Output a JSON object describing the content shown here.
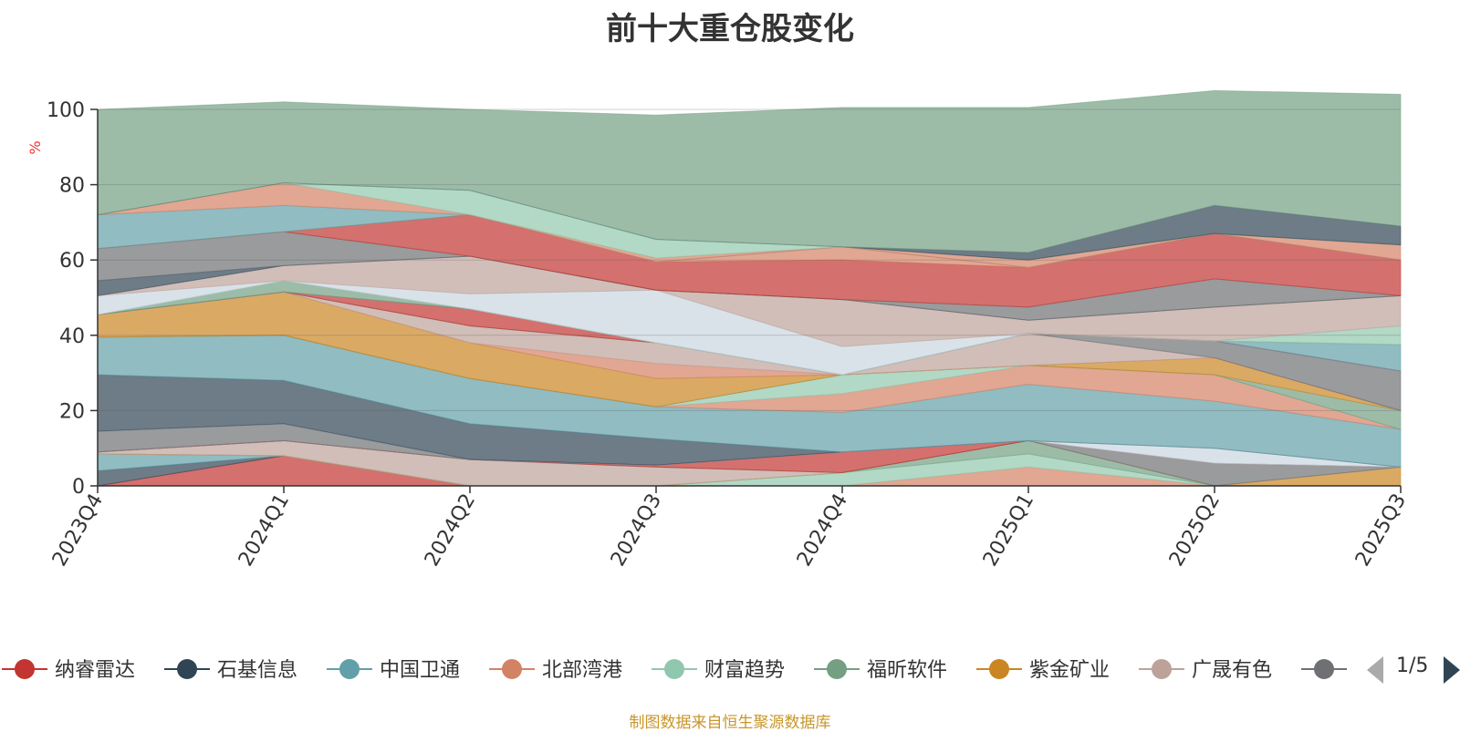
{
  "title": "前十大重仓股变化",
  "source_note": "制图数据来自恒生聚源数据库",
  "pager": {
    "text": "1/5"
  },
  "chart_data": {
    "type": "area",
    "stacked": true,
    "ylabel": "%",
    "ylim": [
      0,
      100
    ],
    "yticks": [
      "0",
      "20",
      "40",
      "60",
      "80",
      "100"
    ],
    "categories": [
      "2023Q4",
      "2024Q1",
      "2024Q2",
      "2024Q3",
      "2024Q4",
      "2025Q1",
      "2025Q2",
      "2025Q3"
    ],
    "grid": true,
    "legend_position": "bottom",
    "series": [
      {
        "name": "纳睿雷达",
        "color": "#c23531",
        "values": [
          0,
          8,
          0,
          0,
          0,
          0,
          0,
          0
        ]
      },
      {
        "name": "石基信息",
        "color": "#2f4554",
        "values": [
          4,
          0,
          0,
          0,
          0,
          0,
          0,
          0
        ]
      },
      {
        "name": "中国卫通",
        "color": "#61a0a8",
        "values": [
          4.5,
          0,
          0,
          0,
          0,
          0,
          0,
          0
        ]
      },
      {
        "name": "北部湾港",
        "color": "#d48265",
        "values": [
          0,
          0,
          0,
          0,
          0,
          5,
          0,
          0
        ]
      },
      {
        "name": "财富趋势",
        "color": "#91c7ae",
        "values": [
          0,
          0,
          0,
          0,
          3.5,
          3.5,
          0,
          0
        ]
      },
      {
        "name": "福昕软件",
        "color": "#749f83",
        "values": [
          0,
          0,
          0,
          0,
          0,
          3.5,
          0,
          0
        ]
      },
      {
        "name": "紫金矿业",
        "color": "#ca8622",
        "values": [
          0,
          0,
          0,
          0,
          0,
          0,
          0,
          5
        ]
      },
      {
        "name": "广晟有色",
        "color": "#bda29a",
        "values": [
          0.5,
          4,
          7,
          5,
          0,
          0,
          0,
          0
        ]
      },
      {
        "name": "",
        "color": "#6e7074",
        "values": [
          0,
          0,
          0,
          0,
          0,
          0,
          6,
          0
        ]
      },
      {
        "name": "",
        "color": "#c23531",
        "values": [
          0,
          0,
          0,
          0.5,
          5.5,
          0,
          0,
          0
        ]
      },
      {
        "name": "",
        "color": "#bda29a",
        "values": [
          0,
          0,
          0,
          0,
          0,
          0,
          0,
          0
        ]
      },
      {
        "name": "",
        "color": "#6e7074",
        "values": [
          5.5,
          4.5,
          0,
          0,
          0,
          0,
          0,
          0
        ]
      },
      {
        "name": "",
        "color": "#cbd5e0",
        "values": [
          0,
          0,
          0,
          0,
          0,
          0,
          4,
          0
        ]
      },
      {
        "name": "",
        "color": "#2f4554",
        "values": [
          15,
          11.5,
          9.5,
          7,
          0,
          0,
          0,
          0
        ]
      },
      {
        "name": "",
        "color": "#61a0a8",
        "values": [
          10,
          12,
          12,
          8.5,
          10.5,
          15,
          12.5,
          10
        ]
      },
      {
        "name": "",
        "color": "#d48265",
        "values": [
          0,
          0,
          0,
          0,
          5,
          5,
          7,
          0
        ]
      },
      {
        "name": "",
        "color": "#91c7ae",
        "values": [
          0,
          0,
          0,
          0,
          5,
          0,
          0,
          0
        ]
      },
      {
        "name": "",
        "color": "#749f83",
        "values": [
          0,
          0,
          0,
          0,
          0,
          0,
          0,
          5
        ]
      },
      {
        "name": "",
        "color": "#ca8622",
        "values": [
          6,
          11.5,
          9.5,
          7.5,
          0,
          0,
          4.5,
          0
        ]
      },
      {
        "name": "",
        "color": "#d48265",
        "values": [
          0,
          0,
          0,
          4,
          0,
          0,
          0,
          0
        ]
      },
      {
        "name": "",
        "color": "#bda29a",
        "values": [
          0,
          0,
          4.5,
          5.5,
          0,
          8.5,
          0,
          0
        ]
      },
      {
        "name": "",
        "color": "#6e7074",
        "values": [
          0,
          0,
          0,
          0,
          0,
          0,
          4.5,
          10.5
        ]
      },
      {
        "name": "",
        "color": "#c23531",
        "values": [
          0,
          0,
          4.5,
          0,
          0,
          0,
          0,
          0
        ]
      },
      {
        "name": "",
        "color": "#61a0a8",
        "values": [
          0,
          0,
          0,
          0,
          0,
          0,
          0,
          7
        ]
      },
      {
        "name": "",
        "color": "#749f83",
        "values": [
          0,
          3,
          0,
          0,
          0,
          0,
          0,
          0
        ]
      },
      {
        "name": "",
        "color": "#91c7ae",
        "values": [
          0,
          0,
          0,
          0,
          0,
          0,
          0,
          5
        ]
      },
      {
        "name": "",
        "color": "#cbd5e0",
        "values": [
          5,
          0,
          4,
          14,
          7.5,
          0,
          0,
          0
        ]
      },
      {
        "name": "",
        "color": "#bda29a",
        "values": [
          0,
          4,
          10,
          0,
          12.5,
          3.5,
          9,
          8
        ]
      },
      {
        "name": "",
        "color": "#2f4554",
        "values": [
          4,
          0,
          0,
          0,
          0,
          0,
          0,
          0
        ]
      },
      {
        "name": "",
        "color": "#6e7074",
        "values": [
          8.5,
          9,
          0,
          0,
          0,
          3.5,
          7.5,
          0
        ]
      },
      {
        "name": "",
        "color": "#c23531",
        "values": [
          0,
          0,
          11,
          7.5,
          10.5,
          10.5,
          12,
          9.5
        ]
      },
      {
        "name": "",
        "color": "#d48265",
        "values": [
          0,
          0,
          0,
          0,
          3.5,
          0,
          0,
          0
        ]
      },
      {
        "name": "",
        "color": "#61a0a8",
        "values": [
          9,
          7,
          0,
          0,
          0,
          0,
          0,
          0
        ]
      },
      {
        "name": "",
        "color": "#d48265",
        "values": [
          0,
          6,
          0,
          1,
          0,
          2,
          0,
          4
        ]
      },
      {
        "name": "",
        "color": "#91c7ae",
        "values": [
          0,
          0,
          6.5,
          5,
          0,
          0,
          0,
          0
        ]
      },
      {
        "name": "",
        "color": "#2f4554",
        "values": [
          0,
          0,
          0,
          0,
          0,
          2,
          7.5,
          5
        ]
      },
      {
        "name": "",
        "color": "#749f83",
        "values": [
          28,
          21.5,
          21.5,
          33,
          37,
          38.5,
          30.5,
          35
        ]
      }
    ]
  }
}
